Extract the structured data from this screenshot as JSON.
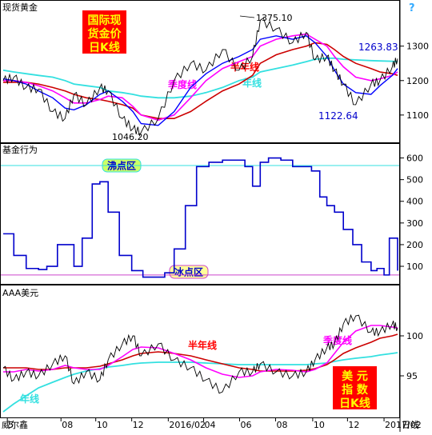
{
  "panels": {
    "gold": {
      "title": "现货黄金",
      "badge": [
        "国际现",
        "货金价",
        "日K线"
      ],
      "high_label": "1375.10",
      "low_label": "1046.20",
      "last_label": "1263.83",
      "recent_low_label": "1122.64",
      "ma_labels": {
        "halfyear": "半年线",
        "quarter": "季度线",
        "year": "年线"
      },
      "help_icon": "?"
    },
    "fund": {
      "title": "基金行为",
      "boil_label": "沸点区",
      "freeze_label": "冰点区"
    },
    "usd": {
      "title": "AAA美元",
      "badge": [
        "美 元",
        "指 数",
        "日K线"
      ],
      "ma_labels": {
        "halfyear": "半年线",
        "quarter": "季度线",
        "year": "年线"
      }
    }
  },
  "xaxis": {
    "prefix": "威尔鑫",
    "period": "日线",
    "ticks": [
      "5",
      "08",
      "10",
      "12",
      "2016/02",
      "04",
      "06",
      "08",
      "10",
      "12",
      "2017/02"
    ]
  },
  "colors": {
    "price": "#000000",
    "ma_quarter_fast": "#0000ff",
    "ma_quarter": "#ff00ff",
    "ma_halfyear": "#cc0000",
    "ma_year": "#33e0e0",
    "fund_line": "#0000cc",
    "label_red": "#ff0000",
    "label_blue": "#0000cc",
    "badge_bg": "#ff0000",
    "badge_fg": "#ffff00",
    "boil_bg": "#ccff66",
    "freeze_bg": "#ffff99",
    "boil_line": "#33e0e0",
    "freeze_line": "#cc44cc"
  },
  "chart_data": [
    {
      "type": "line",
      "name": "gold",
      "ylim": [
        1030,
        1420
      ],
      "yticks": [
        1100,
        1200,
        1300
      ],
      "x": [
        "2015-04-27",
        "2015-05-15",
        "2015-06-05",
        "2015-06-26",
        "2015-07-20",
        "2015-08-10",
        "2015-08-25",
        "2015-09-15",
        "2015-10-08",
        "2015-10-22",
        "2015-11-15",
        "2015-12-03",
        "2015-12-17",
        "2016-01-15",
        "2016-02-11",
        "2016-03-10",
        "2016-04-05",
        "2016-05-03",
        "2016-05-31",
        "2016-06-23",
        "2016-07-06",
        "2016-08-02",
        "2016-08-30",
        "2016-09-22",
        "2016-10-07",
        "2016-10-27",
        "2016-11-09",
        "2016-11-24",
        "2016-12-15",
        "2017-01-10",
        "2017-01-25",
        "2017-02-15",
        "2017-02-24"
      ],
      "series": [
        {
          "key": "price",
          "values": [
            1200,
            1210,
            1180,
            1175,
            1110,
            1090,
            1160,
            1130,
            1180,
            1170,
            1090,
            1060,
            1050,
            1090,
            1200,
            1250,
            1230,
            1290,
            1230,
            1270,
            1375,
            1350,
            1310,
            1340,
            1260,
            1270,
            1230,
            1190,
            1130,
            1190,
            1200,
            1240,
            1263.83
          ]
        },
        {
          "key": "ma_quarter_fast",
          "values": [
            1205,
            1200,
            1190,
            1170,
            1150,
            1120,
            1115,
            1130,
            1160,
            1170,
            1140,
            1110,
            1075,
            1070,
            1110,
            1180,
            1220,
            1250,
            1270,
            1290,
            1320,
            1330,
            1320,
            1330,
            1310,
            1270,
            1230,
            1190,
            1165,
            1160,
            1185,
            1215,
            1235
          ]
        },
        {
          "key": "ma_quarter",
          "values": [
            1200,
            1200,
            1195,
            1185,
            1170,
            1150,
            1135,
            1135,
            1145,
            1155,
            1150,
            1125,
            1100,
            1085,
            1100,
            1150,
            1200,
            1235,
            1255,
            1270,
            1300,
            1320,
            1330,
            1335,
            1320,
            1300,
            1270,
            1240,
            1210,
            1200,
            1205,
            1215,
            1225
          ]
        },
        {
          "key": "ma_halfyear",
          "values": [
            1195,
            1195,
            1195,
            1190,
            1180,
            1170,
            1160,
            1150,
            1145,
            1140,
            1130,
            1120,
            1100,
            1090,
            1090,
            1110,
            1140,
            1170,
            1190,
            1215,
            1250,
            1275,
            1290,
            1300,
            1310,
            1305,
            1290,
            1270,
            1250,
            1235,
            1225,
            1220,
            1215
          ]
        },
        {
          "key": "ma_year",
          "values": [
            1230,
            1225,
            1220,
            1215,
            1210,
            1200,
            1190,
            1185,
            1180,
            1170,
            1165,
            1160,
            1155,
            1150,
            1150,
            1155,
            1165,
            1180,
            1200,
            1210,
            1225,
            1235,
            1245,
            1255,
            1262,
            1265,
            1265,
            1262,
            1260,
            1258,
            1257,
            1256,
            1255
          ]
        }
      ]
    },
    {
      "type": "step",
      "name": "fund",
      "ylim": [
        30,
        650
      ],
      "yticks": [
        100,
        200,
        300,
        400,
        500,
        600
      ],
      "thresholds": {
        "boil": 565,
        "freeze": 60
      },
      "x": [
        "2015-04-27",
        "2015-05-15",
        "2015-06-05",
        "2015-06-26",
        "2015-07-10",
        "2015-07-28",
        "2015-08-12",
        "2015-08-25",
        "2015-09-08",
        "2015-09-25",
        "2015-10-08",
        "2015-10-22",
        "2015-11-10",
        "2015-12-01",
        "2015-12-20",
        "2016-01-10",
        "2016-01-26",
        "2016-02-11",
        "2016-03-01",
        "2016-03-20",
        "2016-04-10",
        "2016-05-03",
        "2016-05-20",
        "2016-06-10",
        "2016-06-23",
        "2016-07-06",
        "2016-07-20",
        "2016-08-10",
        "2016-08-30",
        "2016-09-15",
        "2016-10-01",
        "2016-10-15",
        "2016-10-27",
        "2016-11-09",
        "2016-11-24",
        "2016-12-10",
        "2016-12-25",
        "2017-01-10",
        "2017-01-20",
        "2017-02-01",
        "2017-02-10",
        "2017-02-24"
      ],
      "values": [
        250,
        150,
        90,
        85,
        100,
        200,
        200,
        100,
        230,
        480,
        490,
        350,
        150,
        80,
        50,
        50,
        70,
        180,
        380,
        560,
        580,
        590,
        590,
        560,
        470,
        580,
        600,
        590,
        560,
        560,
        540,
        420,
        380,
        350,
        270,
        200,
        120,
        80,
        90,
        60,
        230,
        80
      ]
    },
    {
      "type": "line",
      "name": "usd",
      "ylim": [
        90,
        106
      ],
      "yticks": [
        95,
        100
      ],
      "x": [
        "2015-04-27",
        "2015-05-15",
        "2015-06-05",
        "2015-06-26",
        "2015-07-20",
        "2015-08-10",
        "2015-08-25",
        "2015-09-15",
        "2015-10-08",
        "2015-10-22",
        "2015-11-15",
        "2015-12-03",
        "2015-12-17",
        "2016-01-15",
        "2016-02-11",
        "2016-03-10",
        "2016-04-05",
        "2016-05-03",
        "2016-05-31",
        "2016-06-23",
        "2016-07-06",
        "2016-08-02",
        "2016-08-30",
        "2016-09-22",
        "2016-10-07",
        "2016-10-27",
        "2016-11-09",
        "2016-11-24",
        "2016-12-15",
        "2017-01-10",
        "2017-01-25",
        "2017-02-15",
        "2017-02-24"
      ],
      "series": [
        {
          "key": "price",
          "values": [
            96,
            94.5,
            95.5,
            95,
            96.5,
            97.5,
            94,
            95.5,
            94.5,
            97,
            99,
            100,
            97.5,
            99,
            97,
            96,
            94.5,
            93,
            95.5,
            95.5,
            96.5,
            95.5,
            95,
            95.5,
            97,
            98.5,
            99,
            101.5,
            102.5,
            100.5,
            100.5,
            101.5,
            101
          ]
        },
        {
          "key": "ma_quarter",
          "values": [
            95.5,
            95.5,
            95.8,
            95.6,
            95.8,
            96.3,
            96.0,
            95.8,
            95.8,
            96.3,
            97.4,
            98.3,
            98.6,
            98.5,
            97.8,
            97.0,
            96.0,
            95.2,
            94.8,
            95.0,
            95.5,
            95.8,
            95.7,
            95.5,
            95.8,
            96.6,
            97.8,
            99.2,
            100.6,
            101.3,
            101.3,
            101.1,
            101.0
          ]
        },
        {
          "key": "ma_halfyear",
          "values": [
            96.0,
            96.0,
            96.0,
            95.8,
            95.8,
            96.0,
            96.0,
            96.0,
            96.2,
            96.5,
            97.0,
            97.5,
            97.8,
            98.0,
            97.8,
            97.5,
            97.0,
            96.5,
            96.0,
            95.8,
            95.6,
            95.6,
            95.6,
            95.7,
            95.9,
            96.4,
            97.0,
            97.8,
            98.5,
            99.2,
            99.7,
            100.0,
            100.2
          ]
        },
        {
          "key": "ma_year",
          "values": [
            90.5,
            91.5,
            92.5,
            93.5,
            94.2,
            94.8,
            95.2,
            95.6,
            95.9,
            96.1,
            96.3,
            96.5,
            96.6,
            96.7,
            96.7,
            96.7,
            96.6,
            96.5,
            96.4,
            96.4,
            96.4,
            96.4,
            96.4,
            96.4,
            96.5,
            96.6,
            96.8,
            97.0,
            97.2,
            97.4,
            97.6,
            97.8,
            97.9
          ]
        }
      ]
    }
  ]
}
